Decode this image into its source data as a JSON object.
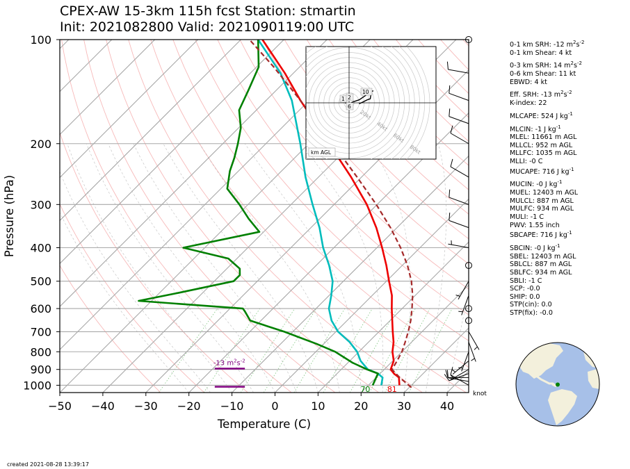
{
  "title_line1": "CPEX-AW 15-3km  115h fcst  Station: stmartin",
  "title_line2": "Init: 2021082800  Valid: 2021090119:00 UTC",
  "footer": "created 2021-08-28 13:39:17",
  "stats": [
    {
      "label": "0-1 km SRH: -12 m",
      "sup": "2",
      "mid": "s",
      "sup2": "-2"
    },
    {
      "label": "0-1 km Shear: 4 kt"
    },
    {
      "label": "0-3 km SRH: 14 m",
      "sup": "2",
      "mid": "s",
      "sup2": "-2",
      "gap": true
    },
    {
      "label": "0-6 km Shear: 11 kt"
    },
    {
      "label": "EBWD: 4 kt"
    },
    {
      "label": "Eff. SRH: -13 m",
      "sup": "2",
      "mid": "s",
      "sup2": "-2",
      "gap": true
    },
    {
      "label": "K-index: 22"
    },
    {
      "label": "MLCAPE: 524 J kg",
      "sup": "-1",
      "gap": true
    },
    {
      "label": "MLCIN: -1 J kg",
      "sup": "-1",
      "gap": true
    },
    {
      "label": "MLEL: 11661 m AGL"
    },
    {
      "label": "MLLCL: 952 m AGL"
    },
    {
      "label": "MLLFC: 1035 m AGL"
    },
    {
      "label": "MLLI: -0 C"
    },
    {
      "label": "MUCAPE: 716 J kg",
      "sup": "-1"
    },
    {
      "label": "MUCIN: -0 J kg",
      "sup": "-1",
      "gap": true
    },
    {
      "label": "MUEL: 12403 m AGL"
    },
    {
      "label": "MULCL: 887 m AGL"
    },
    {
      "label": "MULFC: 934 m AGL"
    },
    {
      "label": "MULI: -1 C"
    },
    {
      "label": "PWV: 1.55 inch"
    },
    {
      "label": "SBCAPE: 716 J kg",
      "sup": "-1"
    },
    {
      "label": "SBCIN: -0 J kg",
      "sup": "-1",
      "gap": true
    },
    {
      "label": "SBEL: 12403 m AGL"
    },
    {
      "label": "SBLCL: 887 m AGL"
    },
    {
      "label": "SBLFC: 934 m AGL"
    },
    {
      "label": "SBLI: -1 C"
    },
    {
      "label": "SCP: -0.0"
    },
    {
      "label": "SHIP: 0.0"
    },
    {
      "label": "STP(cin): 0.0"
    },
    {
      "label": "STP(fix): -0.0"
    }
  ],
  "chart_data": {
    "type": "line",
    "skew_t": true,
    "xlabel": "Temperature (C)",
    "ylabel": "Pressure (hPa)",
    "xlim": [
      -50,
      45
    ],
    "ylim": [
      1050,
      100
    ],
    "x_ticks": [
      -50,
      -40,
      -30,
      -20,
      -10,
      0,
      10,
      20,
      30,
      40
    ],
    "y_ticks": [
      100,
      200,
      300,
      400,
      500,
      600,
      700,
      800,
      900,
      1000
    ],
    "grid": true,
    "series": [
      {
        "color": "#ee0000",
        "points": [
          [
            1000,
            27.2
          ],
          [
            950,
            25.3
          ],
          [
            925,
            23.2
          ],
          [
            900,
            21.5
          ],
          [
            850,
            20.2
          ],
          [
            800,
            17.8
          ],
          [
            750,
            15.8
          ],
          [
            700,
            13.2
          ],
          [
            650,
            10.5
          ],
          [
            600,
            7.6
          ],
          [
            550,
            4.6
          ],
          [
            500,
            0.6
          ],
          [
            450,
            -3.7
          ],
          [
            400,
            -8.8
          ],
          [
            350,
            -14.8
          ],
          [
            300,
            -22.4
          ],
          [
            250,
            -32.4
          ],
          [
            200,
            -45.3
          ],
          [
            175,
            -53
          ],
          [
            150,
            -62
          ],
          [
            125,
            -72
          ],
          [
            100,
            -85
          ]
        ]
      },
      {
        "color": "#00bcbc",
        "points": [
          [
            1000,
            23.0
          ],
          [
            950,
            21.5
          ],
          [
            925,
            19.5
          ],
          [
            900,
            16.2
          ],
          [
            850,
            12.5
          ],
          [
            800,
            9.6
          ],
          [
            750,
            5.6
          ],
          [
            700,
            0.5
          ],
          [
            650,
            -3.6
          ],
          [
            600,
            -7.0
          ],
          [
            550,
            -9.5
          ],
          [
            500,
            -12.5
          ],
          [
            450,
            -17.0
          ],
          [
            400,
            -22.5
          ],
          [
            350,
            -28.0
          ],
          [
            300,
            -35.0
          ],
          [
            250,
            -43.0
          ],
          [
            200,
            -52.0
          ],
          [
            150,
            -64.0
          ],
          [
            125,
            -73.0
          ],
          [
            100,
            -86.0
          ]
        ]
      },
      {
        "color": "#008000",
        "points": [
          [
            1000,
            21.0
          ],
          [
            950,
            20.0
          ],
          [
            925,
            19.5
          ],
          [
            900,
            16.0
          ],
          [
            860,
            11.0
          ],
          [
            800,
            4.5
          ],
          [
            760,
            -1.5
          ],
          [
            700,
            -12.0
          ],
          [
            650,
            -22.5
          ],
          [
            610,
            -26.0
          ],
          [
            600,
            -27.0
          ],
          [
            570,
            -53.0
          ],
          [
            540,
            -45.5
          ],
          [
            500,
            -35.5
          ],
          [
            480,
            -35.5
          ],
          [
            460,
            -37.0
          ],
          [
            430,
            -42.0
          ],
          [
            400,
            -55.0
          ],
          [
            360,
            -41.0
          ],
          [
            330,
            -46.5
          ],
          [
            300,
            -52.0
          ],
          [
            270,
            -58.5
          ],
          [
            240,
            -62.0
          ],
          [
            220,
            -64.0
          ],
          [
            200,
            -66.5
          ],
          [
            180,
            -69.5
          ],
          [
            160,
            -74.0
          ],
          [
            140,
            -76.5
          ],
          [
            120,
            -79.5
          ],
          [
            100,
            -86.0
          ]
        ]
      },
      {
        "color": "#a52a2a",
        "dashed": true,
        "points": [
          [
            1015,
            30.5
          ],
          [
            950,
            25.5
          ],
          [
            900,
            21.8
          ],
          [
            850,
            21.0
          ],
          [
            800,
            20.0
          ],
          [
            750,
            18.5
          ],
          [
            700,
            16.8
          ],
          [
            650,
            14.8
          ],
          [
            600,
            12.3
          ],
          [
            550,
            9.4
          ],
          [
            500,
            5.8
          ],
          [
            450,
            1.2
          ],
          [
            400,
            -4.5
          ],
          [
            350,
            -11.5
          ],
          [
            300,
            -20.2
          ],
          [
            250,
            -31.0
          ],
          [
            200,
            -44.5
          ],
          [
            150,
            -62.0
          ],
          [
            120,
            -76.0
          ],
          [
            100,
            -88.0
          ]
        ]
      }
    ],
    "surface_labels": [
      {
        "text": "70",
        "color": "#008000",
        "x": 21.0
      },
      {
        "text": "81",
        "color": "#ee0000",
        "x": 27.2
      }
    ],
    "effective_layer": {
      "label": "-13 m",
      "sup": "2",
      "mid": "s",
      "sup2": "-2",
      "color": "#800080",
      "p_top": 895,
      "p_bottom": 1010,
      "x_left": -14,
      "x_right": -7
    },
    "wind_barbs_unit": "knot",
    "wind_barbs": [
      {
        "p": 1000,
        "speed": 10,
        "dir": 300
      },
      {
        "p": 975,
        "speed": 10,
        "dir": 280
      },
      {
        "p": 950,
        "speed": 10,
        "dir": 270
      },
      {
        "p": 925,
        "speed": 10,
        "dir": 250
      },
      {
        "p": 900,
        "speed": 5,
        "dir": 240
      },
      {
        "p": 850,
        "speed": 5,
        "dir": 230
      },
      {
        "p": 800,
        "speed": 5,
        "dir": 200
      },
      {
        "p": 750,
        "speed": 5,
        "dir": 160
      },
      {
        "p": 700,
        "speed": 5,
        "dir": 150
      },
      {
        "p": 650,
        "speed": 0,
        "dir": 0
      },
      {
        "p": 600,
        "speed": 0,
        "dir": 0
      },
      {
        "p": 550,
        "speed": 5,
        "dir": 200
      },
      {
        "p": 500,
        "speed": 5,
        "dir": 210
      },
      {
        "p": 450,
        "speed": 0,
        "dir": 0
      },
      {
        "p": 400,
        "speed": 5,
        "dir": 280
      },
      {
        "p": 350,
        "speed": 10,
        "dir": 290
      },
      {
        "p": 300,
        "speed": 10,
        "dir": 290
      },
      {
        "p": 250,
        "speed": 10,
        "dir": 300
      },
      {
        "p": 200,
        "speed": 10,
        "dir": 300
      },
      {
        "p": 175,
        "speed": 10,
        "dir": 290
      },
      {
        "p": 150,
        "speed": 10,
        "dir": 290
      },
      {
        "p": 125,
        "speed": 10,
        "dir": 280
      },
      {
        "p": 100,
        "speed": 0,
        "dir": 0
      }
    ],
    "hodograph": {
      "rings_kt": [
        20,
        40,
        60,
        80
      ],
      "ring_labels": [
        "20kt",
        "40kt",
        "60kt",
        "80kt"
      ],
      "corner_label": "km AGL",
      "height_labels": [
        "1",
        "2",
        "6",
        "10"
      ],
      "trace_kt": [
        [
          -2,
          0
        ],
        [
          0,
          -0.5
        ],
        [
          2,
          0.5
        ],
        [
          5,
          1.5
        ],
        [
          8,
          3.5
        ],
        [
          10,
          5
        ],
        [
          12,
          6
        ],
        [
          11,
          5.5
        ],
        [
          10.5,
          2
        ],
        [
          9,
          1.5
        ],
        [
          7,
          0.5
        ],
        [
          5,
          -0.5
        ]
      ]
    },
    "globe_marker": {
      "lat": 18,
      "lon": -63,
      "color": "#008000"
    }
  }
}
